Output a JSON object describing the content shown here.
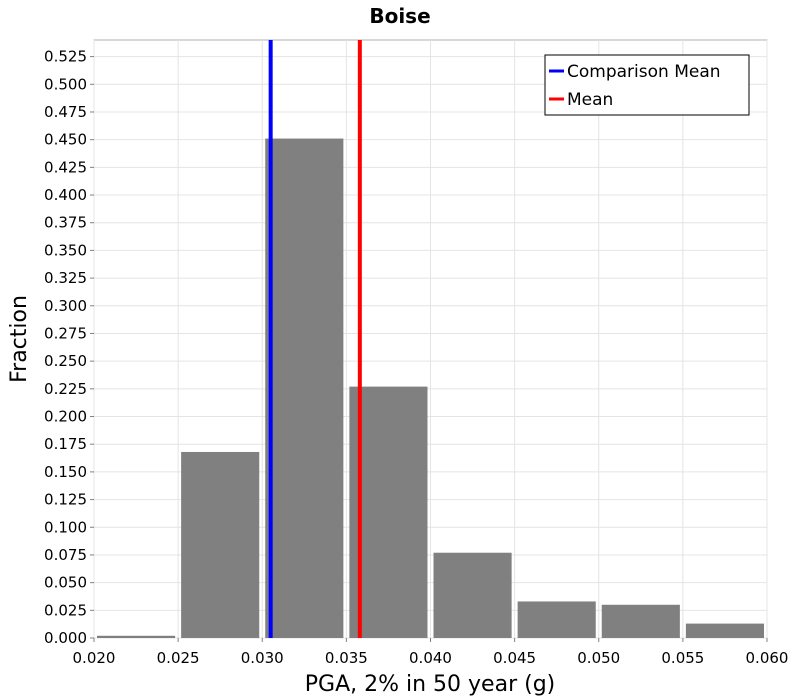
{
  "chart_data": {
    "type": "bar",
    "title": "Boise",
    "xlabel": "PGA, 2% in 50 year (g)",
    "ylabel": "Fraction",
    "xlim": [
      0.02,
      0.06
    ],
    "ylim": [
      0.0,
      0.54
    ],
    "grid": true,
    "bin_width": 0.005,
    "bins": [
      {
        "x0": 0.02,
        "x1": 0.025,
        "value": 0.002
      },
      {
        "x0": 0.025,
        "x1": 0.03,
        "value": 0.168
      },
      {
        "x0": 0.03,
        "x1": 0.035,
        "value": 0.451
      },
      {
        "x0": 0.035,
        "x1": 0.04,
        "value": 0.227
      },
      {
        "x0": 0.04,
        "x1": 0.045,
        "value": 0.077
      },
      {
        "x0": 0.045,
        "x1": 0.05,
        "value": 0.033
      },
      {
        "x0": 0.05,
        "x1": 0.055,
        "value": 0.03
      },
      {
        "x0": 0.055,
        "x1": 0.06,
        "value": 0.013
      }
    ],
    "bar_color": "#808080",
    "x_ticks": [
      "0.020",
      "0.025",
      "0.030",
      "0.035",
      "0.040",
      "0.045",
      "0.050",
      "0.055",
      "0.060"
    ],
    "y_ticks": [
      "0.000",
      "0.025",
      "0.050",
      "0.075",
      "0.100",
      "0.125",
      "0.150",
      "0.175",
      "0.200",
      "0.225",
      "0.250",
      "0.275",
      "0.300",
      "0.325",
      "0.350",
      "0.375",
      "0.400",
      "0.425",
      "0.450",
      "0.475",
      "0.500",
      "0.525"
    ],
    "vlines": [
      {
        "name": "Comparison Mean",
        "x": 0.0305,
        "color": "#0000ff"
      },
      {
        "name": "Mean",
        "x": 0.0358,
        "color": "#ff0000"
      }
    ],
    "legend": {
      "placement": "top-right",
      "entries": [
        {
          "label": "Comparison Mean",
          "color": "#0000ff"
        },
        {
          "label": "Mean",
          "color": "#ff0000"
        }
      ]
    }
  }
}
